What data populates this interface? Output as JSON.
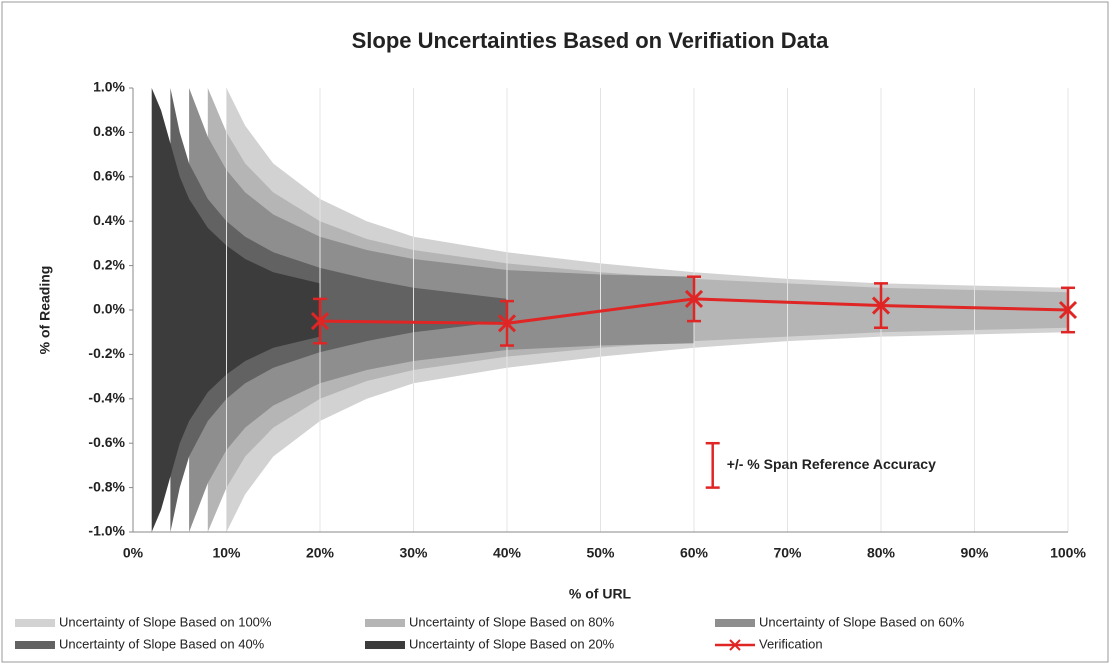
{
  "chart_data": {
    "type": "band",
    "title": "Slope Uncertainties Based on Verifiation Data",
    "xlabel": "% of URL",
    "ylabel": "% of Reading",
    "xlim": [
      0,
      100
    ],
    "ylim": [
      -1.0,
      1.0
    ],
    "xticks": [
      {
        "value": 0,
        "label": "0%"
      },
      {
        "value": 10,
        "label": "10%"
      },
      {
        "value": 20,
        "label": "20%"
      },
      {
        "value": 30,
        "label": "30%"
      },
      {
        "value": 40,
        "label": "40%"
      },
      {
        "value": 50,
        "label": "50%"
      },
      {
        "value": 60,
        "label": "60%"
      },
      {
        "value": 70,
        "label": "70%"
      },
      {
        "value": 80,
        "label": "80%"
      },
      {
        "value": 90,
        "label": "90%"
      },
      {
        "value": 100,
        "label": "100%"
      }
    ],
    "yticks": [
      {
        "value": 1.0,
        "label": "1.0%"
      },
      {
        "value": 0.8,
        "label": "0.8%"
      },
      {
        "value": 0.6,
        "label": "0.6%"
      },
      {
        "value": 0.4,
        "label": "0.4%"
      },
      {
        "value": 0.2,
        "label": "0.2%"
      },
      {
        "value": 0.0,
        "label": "0.0%"
      },
      {
        "value": -0.2,
        "label": "-0.2%"
      },
      {
        "value": -0.4,
        "label": "-0.4%"
      },
      {
        "value": -0.6,
        "label": "-0.6%"
      },
      {
        "value": -0.8,
        "label": "-0.8%"
      },
      {
        "value": -1.0,
        "label": "-1.0%"
      }
    ],
    "grid": "x",
    "bands": [
      {
        "name": "Uncertainty of Slope Based on 100%",
        "color": "#d2d2d2",
        "x": [
          10,
          12,
          15,
          20,
          25,
          30,
          40,
          50,
          60,
          70,
          80,
          90,
          100
        ],
        "values": [
          1.0,
          0.83,
          0.66,
          0.5,
          0.4,
          0.33,
          0.26,
          0.21,
          0.17,
          0.14,
          0.12,
          0.11,
          0.1
        ]
      },
      {
        "name": "Uncertainty of Slope Based on 80%",
        "color": "#b5b5b5",
        "x": [
          8,
          10,
          12,
          15,
          20,
          25,
          30,
          40,
          50,
          60,
          70,
          80,
          90,
          100
        ],
        "values": [
          1.0,
          0.8,
          0.66,
          0.53,
          0.4,
          0.32,
          0.27,
          0.21,
          0.17,
          0.14,
          0.12,
          0.1,
          0.09,
          0.08
        ]
      },
      {
        "name": "Uncertainty of Slope Based on 60%",
        "color": "#8e8e8e",
        "x": [
          6,
          8,
          10,
          12,
          15,
          20,
          25,
          30,
          40,
          50,
          60
        ],
        "values": [
          1.0,
          0.78,
          0.63,
          0.53,
          0.43,
          0.33,
          0.27,
          0.23,
          0.18,
          0.16,
          0.15
        ]
      },
      {
        "name": "Uncertainty of Slope Based on 40%",
        "color": "#626262",
        "x": [
          4,
          5,
          6,
          8,
          10,
          12,
          15,
          20,
          25,
          30,
          40
        ],
        "values": [
          1.0,
          0.8,
          0.66,
          0.5,
          0.4,
          0.33,
          0.26,
          0.19,
          0.14,
          0.1,
          0.05
        ]
      },
      {
        "name": "Uncertainty of Slope Based on 20%",
        "color": "#3c3c3c",
        "x": [
          2,
          3,
          4,
          5,
          6,
          8,
          10,
          12,
          15,
          20
        ],
        "values": [
          1.0,
          0.9,
          0.75,
          0.6,
          0.5,
          0.37,
          0.29,
          0.23,
          0.17,
          0.12
        ]
      }
    ],
    "series": [
      {
        "name": "Verification",
        "color": "#e02525",
        "x": [
          20,
          40,
          60,
          80,
          100
        ],
        "values": [
          -0.05,
          -0.06,
          0.05,
          0.02,
          0.0
        ],
        "errors": [
          0.1,
          0.1,
          0.1,
          0.1,
          0.1
        ]
      }
    ],
    "annotation": {
      "text": "+/- % Span Reference Accuracy",
      "error": 0.1,
      "x": 62,
      "y": -0.7
    }
  }
}
